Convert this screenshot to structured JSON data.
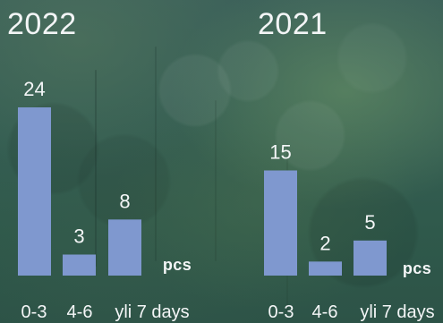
{
  "chart_data": [
    {
      "type": "bar",
      "title": "2022",
      "categories": [
        "0-3",
        "4-6",
        "yli 7 days"
      ],
      "values": [
        24,
        3,
        8
      ],
      "unit_label": "pcs",
      "ylim": [
        0,
        24
      ],
      "grid": false
    },
    {
      "type": "bar",
      "title": "2021",
      "categories": [
        "0-3",
        "4-6",
        "yli 7 days"
      ],
      "values": [
        15,
        2,
        5
      ],
      "unit_label": "pcs",
      "ylim": [
        0,
        24
      ],
      "grid": false
    }
  ],
  "colors": {
    "bar": "#7f98cf",
    "text": "#f4f6f7"
  }
}
